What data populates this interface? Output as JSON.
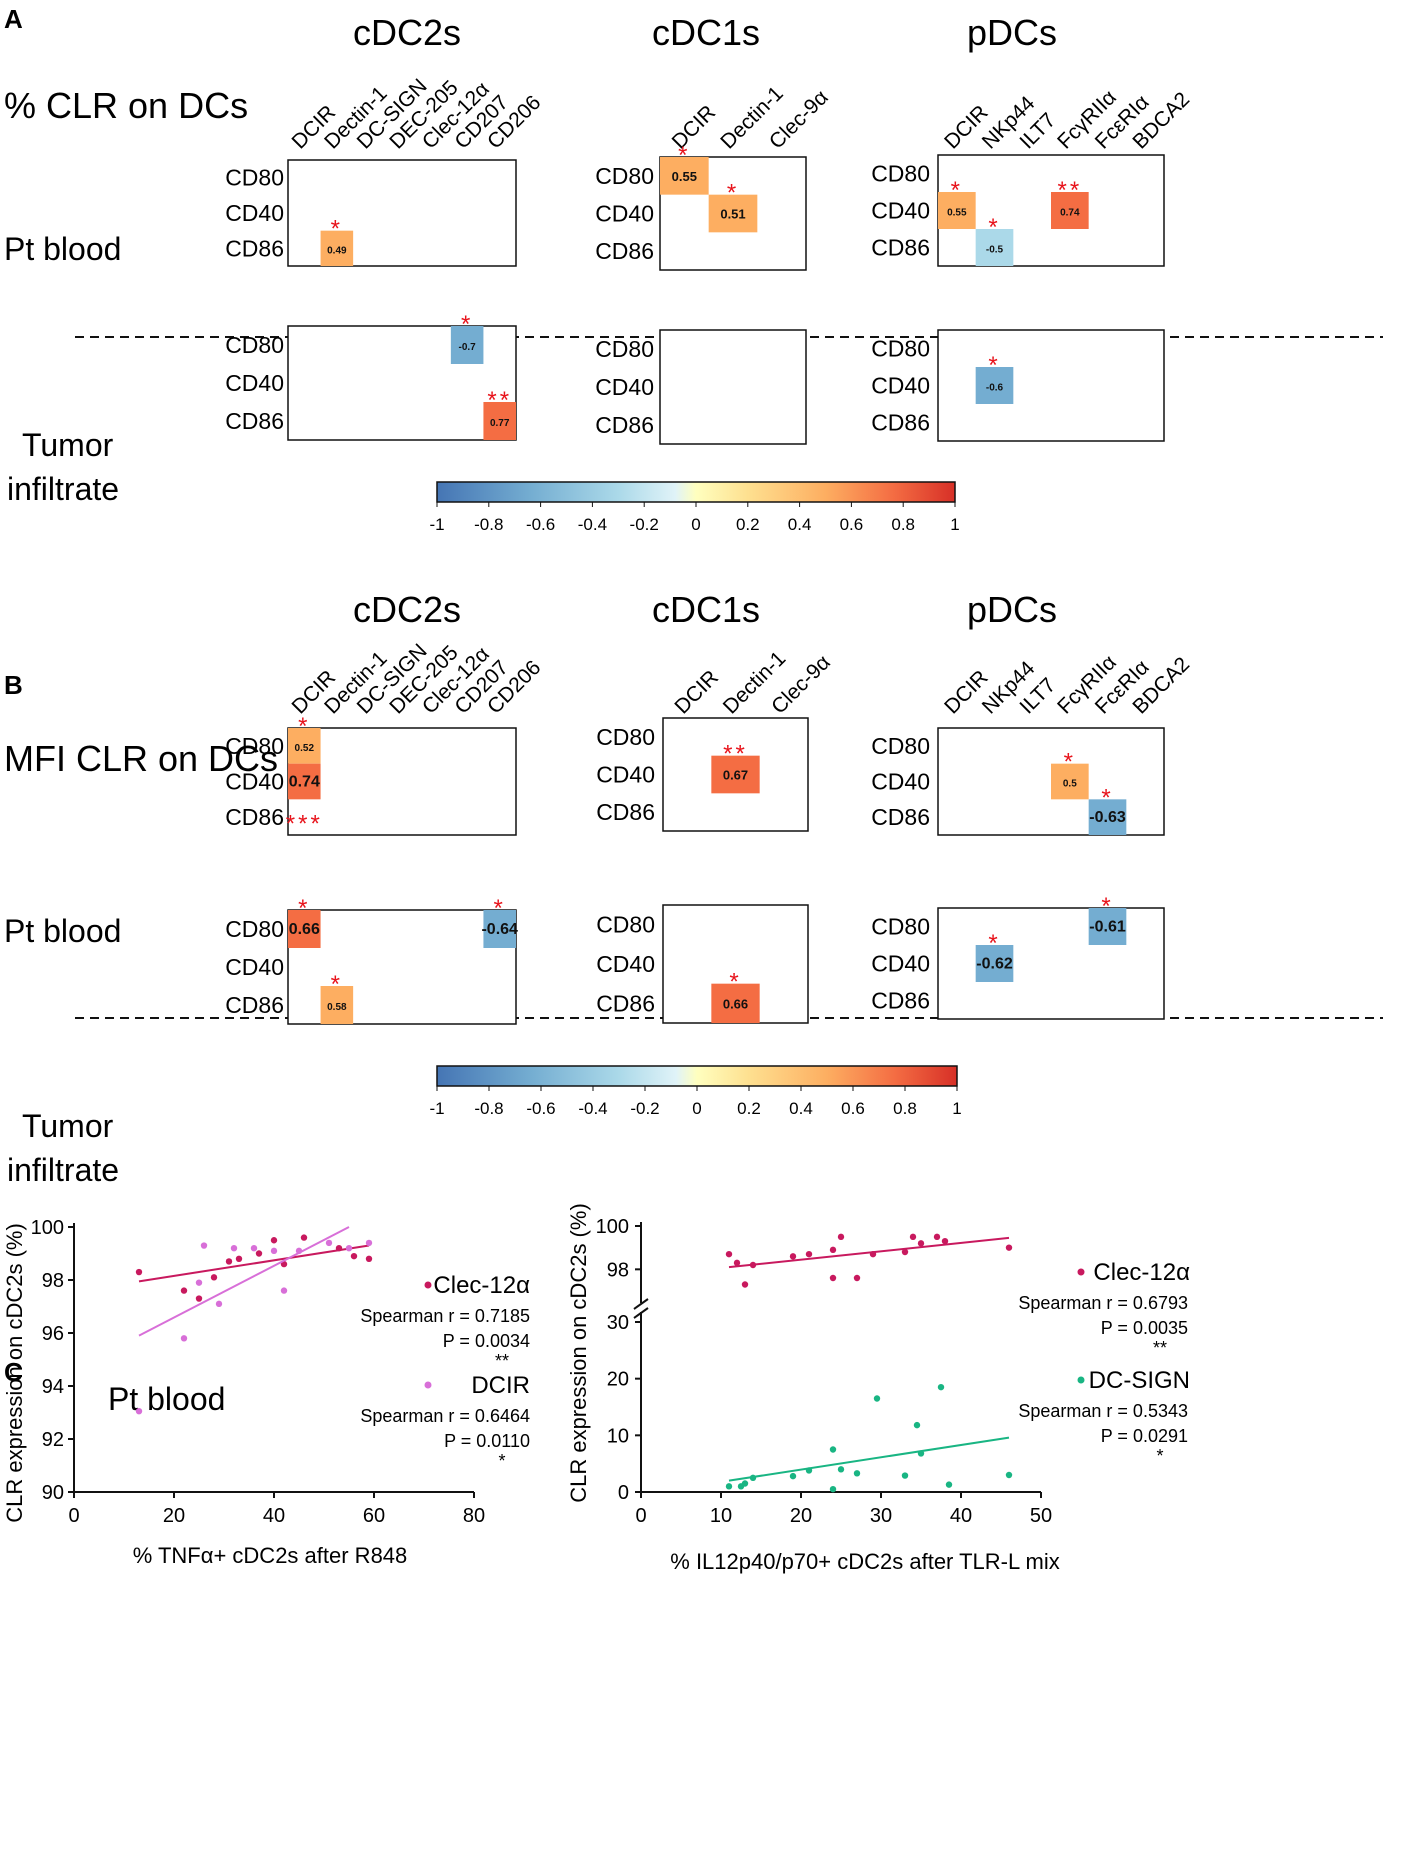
{
  "colors": {
    "neg_strong": "#4575b4",
    "neg_mid": "#74add1",
    "neg_light": "#abd9e9",
    "neutral": "#ffffbf",
    "pos_light": "#fee090",
    "pos_mid": "#fdae61",
    "pos_strong": "#f46d43",
    "pos_max": "#d73027",
    "star": "#e8141c",
    "clec12a": "#c8195e",
    "dcir": "#d86fd8",
    "dcsign": "#19b583",
    "border": "#111111"
  },
  "colorbar_ticks": [
    "-1",
    "-0.8",
    "-0.6",
    "-0.4",
    "-0.2",
    "0",
    "0.2",
    "0.4",
    "0.6",
    "0.8",
    "1"
  ],
  "panel_A": {
    "letter": "A",
    "row_title": "% CLR on DCs",
    "divider_labels": {
      "top": "Pt blood",
      "bottom_line1": "Tumor",
      "bottom_line2": "infiltrate"
    },
    "groups": [
      {
        "title": "cDC2s",
        "columns": [
          "DCIR",
          "Dectin-1",
          "DC-SIGN",
          "DEC-205",
          "Clec-12α",
          "CD207",
          "CD206"
        ],
        "rows": [
          "CD80",
          "CD40",
          "CD86"
        ],
        "blood_cells": [
          {
            "row": 2,
            "col": 1,
            "value": 0.49,
            "label": "0.49",
            "stars": "*"
          }
        ],
        "tumor_cells": [
          {
            "row": 0,
            "col": 5,
            "value": -0.7,
            "label": "-0.7",
            "stars": "*"
          },
          {
            "row": 2,
            "col": 6,
            "value": 0.77,
            "label": "0.77",
            "stars": "**"
          }
        ]
      },
      {
        "title": "cDC1s",
        "columns": [
          "DCIR",
          "Dectin-1",
          "Clec-9α"
        ],
        "rows": [
          "CD80",
          "CD40",
          "CD86"
        ],
        "blood_cells": [
          {
            "row": 0,
            "col": 0,
            "value": 0.55,
            "label": "0.55",
            "stars": "*"
          },
          {
            "row": 1,
            "col": 1,
            "value": 0.51,
            "label": "0.51",
            "stars": "*"
          }
        ],
        "tumor_cells": []
      },
      {
        "title": "pDCs",
        "columns": [
          "DCIR",
          "NKp44",
          "ILT7",
          "FcγRIIα",
          "FcεRIα",
          "BDCA2"
        ],
        "rows": [
          "CD80",
          "CD40",
          "CD86"
        ],
        "blood_cells": [
          {
            "row": 1,
            "col": 0,
            "value": 0.55,
            "label": "0.55",
            "stars": "*"
          },
          {
            "row": 2,
            "col": 1,
            "value": -0.5,
            "label": "-0.5",
            "stars": "*"
          },
          {
            "row": 1,
            "col": 3,
            "value": 0.74,
            "label": "0.74",
            "stars": "**"
          }
        ],
        "tumor_cells": [
          {
            "row": 1,
            "col": 1,
            "value": -0.6,
            "label": "-0.6",
            "stars": "*"
          }
        ]
      }
    ]
  },
  "panel_B": {
    "letter": "B",
    "row_title": "MFI CLR on DCs",
    "divider_labels": {
      "top": "Pt blood",
      "bottom_line1": "Tumor",
      "bottom_line2": "infiltrate"
    },
    "groups": [
      {
        "title": "cDC2s",
        "columns": [
          "DCIR",
          "Dectin-1",
          "DC-SIGN",
          "DEC-205",
          "Clec-12α",
          "CD207",
          "CD206"
        ],
        "rows": [
          "CD80",
          "CD40",
          "CD86"
        ],
        "blood_cells": [
          {
            "row": 0,
            "col": 0,
            "value": 0.52,
            "label": "0.52",
            "stars": "*"
          },
          {
            "row": 1,
            "col": 0,
            "value": 0.74,
            "label": "0.74",
            "stars": "***",
            "stars_below": true
          }
        ],
        "tumor_cells": [
          {
            "row": 0,
            "col": 0,
            "value": 0.66,
            "label": "0.66",
            "stars": "*"
          },
          {
            "row": 2,
            "col": 1,
            "value": 0.58,
            "label": "0.58",
            "stars": "*"
          },
          {
            "row": 0,
            "col": 6,
            "value": -0.64,
            "label": "-0.64",
            "stars": "*"
          }
        ]
      },
      {
        "title": "cDC1s",
        "columns": [
          "DCIR",
          "Dectin-1",
          "Clec-9α"
        ],
        "rows": [
          "CD80",
          "CD40",
          "CD86"
        ],
        "blood_cells": [
          {
            "row": 1,
            "col": 1,
            "value": 0.67,
            "label": "0.67",
            "stars": "**"
          }
        ],
        "tumor_cells": [
          {
            "row": 2,
            "col": 1,
            "value": 0.66,
            "label": "0.66",
            "stars": "*"
          }
        ]
      },
      {
        "title": "pDCs",
        "columns": [
          "DCIR",
          "NKp44",
          "ILT7",
          "FcγRIIα",
          "FcεRIα",
          "BDCA2"
        ],
        "rows": [
          "CD80",
          "CD40",
          "CD86"
        ],
        "blood_cells": [
          {
            "row": 1,
            "col": 3,
            "value": 0.5,
            "label": "0.5",
            "stars": "*"
          },
          {
            "row": 2,
            "col": 4,
            "value": -0.63,
            "label": "-0.63",
            "stars": "*"
          }
        ],
        "tumor_cells": [
          {
            "row": 0,
            "col": 4,
            "value": -0.61,
            "label": "-0.61",
            "stars": "*"
          },
          {
            "row": 1,
            "col": 1,
            "value": -0.62,
            "label": "-0.62",
            "stars": "*"
          }
        ]
      }
    ]
  },
  "panel_C": {
    "letter": "C",
    "subtitle": "Pt blood",
    "left": {
      "ylabel": "CLR expression on cDC2s (%)",
      "xlabel": "% TNFα+ cDC2s after R848",
      "xlim": [
        0,
        80
      ],
      "ylim": [
        90,
        100
      ],
      "xticks": [
        "0",
        "20",
        "40",
        "60",
        "80"
      ],
      "yticks": [
        "90",
        "92",
        "94",
        "96",
        "98",
        "100"
      ],
      "series": [
        {
          "name": "Clec-12α",
          "spearman": "Spearman r = 0.7185",
          "pvalue": "P = 0.0034",
          "stars": "**",
          "points": [
            [
              13,
              98.3
            ],
            [
              22,
              97.6
            ],
            [
              25,
              97.3
            ],
            [
              28,
              98.1
            ],
            [
              31,
              98.7
            ],
            [
              33,
              98.8
            ],
            [
              37,
              99.0
            ],
            [
              40,
              99.5
            ],
            [
              42,
              98.6
            ],
            [
              46,
              99.6
            ],
            [
              53,
              99.2
            ],
            [
              56,
              98.9
            ],
            [
              59,
              98.8
            ]
          ],
          "fit": [
            [
              13,
              97.95
            ],
            [
              59,
              99.3
            ]
          ]
        },
        {
          "name": "DCIR",
          "spearman": "Spearman r = 0.6464",
          "pvalue": "P = 0.0110",
          "stars": "*",
          "points": [
            [
              13,
              93.05
            ],
            [
              22,
              95.8
            ],
            [
              25,
              97.9
            ],
            [
              26,
              99.3
            ],
            [
              29,
              97.1
            ],
            [
              32,
              99.2
            ],
            [
              36,
              99.2
            ],
            [
              40,
              99.1
            ],
            [
              42,
              97.6
            ],
            [
              45,
              99.1
            ],
            [
              51,
              99.4
            ],
            [
              55,
              99.2
            ],
            [
              59,
              99.4
            ]
          ],
          "fit": [
            [
              13,
              95.9
            ],
            [
              55,
              100
            ]
          ]
        }
      ]
    },
    "right": {
      "ylabel": "CLR expression on cDC2s (%)",
      "xlabel": "% IL12p40/p70+ cDC2s after TLR-L mix",
      "xlim": [
        0,
        50
      ],
      "upper_ylim": [
        97,
        100
      ],
      "lower_ylim": [
        0,
        30
      ],
      "xticks": [
        "0",
        "10",
        "20",
        "30",
        "40",
        "50"
      ],
      "upper_yticks": [
        "98",
        "100"
      ],
      "lower_yticks": [
        "0",
        "10",
        "20",
        "30"
      ],
      "series": [
        {
          "name": "Clec-12α",
          "spearman": "Spearman r = 0.6793",
          "pvalue": "P = 0.0035",
          "stars": "**",
          "axis": "upper",
          "points": [
            [
              11,
              98.7
            ],
            [
              12,
              98.3
            ],
            [
              13,
              97.3
            ],
            [
              14,
              98.2
            ],
            [
              19,
              98.6
            ],
            [
              21,
              98.7
            ],
            [
              24,
              98.9
            ],
            [
              24,
              97.6
            ],
            [
              25,
              99.5
            ],
            [
              27,
              97.6
            ],
            [
              29,
              98.7
            ],
            [
              33,
              98.8
            ],
            [
              34,
              99.5
            ],
            [
              35,
              99.2
            ],
            [
              37,
              99.5
            ],
            [
              38,
              99.3
            ],
            [
              46,
              99.0
            ]
          ],
          "fit": [
            [
              11,
              98.1
            ],
            [
              46,
              99.45
            ]
          ]
        },
        {
          "name": "DC-SIGN",
          "spearman": "Spearman r = 0.5343",
          "pvalue": "P = 0.0291",
          "stars": "*",
          "axis": "lower",
          "points": [
            [
              11,
              1.0
            ],
            [
              12.5,
              1.0
            ],
            [
              13,
              1.5
            ],
            [
              14,
              2.5
            ],
            [
              19,
              2.8
            ],
            [
              21,
              3.8
            ],
            [
              24,
              7.5
            ],
            [
              24,
              0.5
            ],
            [
              25,
              4.0
            ],
            [
              27,
              3.3
            ],
            [
              29.5,
              16.5
            ],
            [
              33,
              2.9
            ],
            [
              34.5,
              11.8
            ],
            [
              35,
              6.8
            ],
            [
              37.5,
              18.5
            ],
            [
              38.5,
              1.3
            ],
            [
              46,
              3.0
            ]
          ],
          "fit": [
            [
              11,
              2.0
            ],
            [
              46,
              9.6
            ]
          ]
        }
      ]
    }
  }
}
